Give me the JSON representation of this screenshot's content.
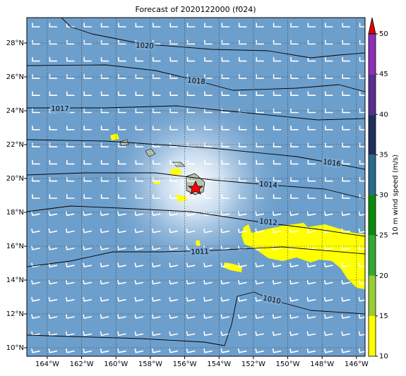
{
  "chart_data": {
    "type": "map",
    "title": "Forecast of 2020122000 (f024)",
    "xlim": [
      -165.19,
      -145.5
    ],
    "xticks": [
      {
        "value": -164,
        "label": "164°W"
      },
      {
        "value": -162,
        "label": "162°W"
      },
      {
        "value": -160,
        "label": "160°W"
      },
      {
        "value": -158,
        "label": "158°W"
      },
      {
        "value": -156,
        "label": "156°W"
      },
      {
        "value": -154,
        "label": "154°W"
      },
      {
        "value": -152,
        "label": "152°W"
      },
      {
        "value": -150,
        "label": "150°W"
      },
      {
        "value": -148,
        "label": "148°W"
      },
      {
        "value": -146,
        "label": "146°W"
      }
    ],
    "ylim": [
      9.5,
      29.5
    ],
    "yticks": [
      {
        "value": 10,
        "label": "10°N"
      },
      {
        "value": 12,
        "label": "12°N"
      },
      {
        "value": 14,
        "label": "14°N"
      },
      {
        "value": 16,
        "label": "16°N"
      },
      {
        "value": 18,
        "label": "18°N"
      },
      {
        "value": 20,
        "label": "20°N"
      },
      {
        "value": 22,
        "label": "22°N"
      },
      {
        "value": 24,
        "label": "24°N"
      },
      {
        "value": 26,
        "label": "26°N"
      },
      {
        "value": 28,
        "label": "28°N"
      }
    ],
    "grid": true,
    "contour_levels": [
      1020,
      1018,
      1017,
      1016,
      1014,
      1012,
      1011,
      1010
    ],
    "colorbar": {
      "label": "10 m wind speed (m/s)",
      "lim": [
        10,
        50
      ],
      "ticks": [
        10,
        15,
        20,
        25,
        30,
        35,
        40,
        45,
        50
      ],
      "colors": [
        "#ffff00",
        "#9acd32",
        "#32a832",
        "#0a8a0a",
        "#2a6a8c",
        "#1f2f5e",
        "#5a2d91",
        "#8e2fb8"
      ],
      "extend_color": "#e00000"
    }
  }
}
